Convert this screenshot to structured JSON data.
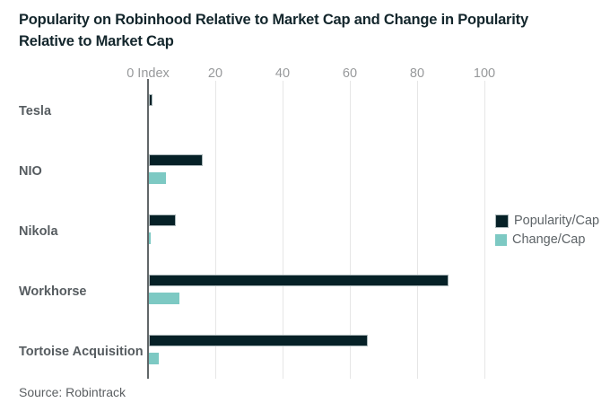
{
  "header": {
    "title": "Popularity on Robinhood Relative to Market Cap and Change in Popularity Relative to Market Cap",
    "title_line1": "Popularity on Robinhood Relative to Market Cap and Change in Popularity",
    "title_line2": "Relative to Market Cap"
  },
  "chart_data": {
    "type": "bar",
    "orientation": "horizontal",
    "title": "Popularity on Robinhood Relative to Market Cap and Change in Popularity Relative to Market Cap",
    "categories": [
      "Tesla",
      "NIO",
      "Nikola",
      "Workhorse",
      "Tortoise Acquisition"
    ],
    "series": [
      {
        "name": "Popularity/Cap",
        "color": "#062127",
        "values": [
          1,
          16,
          8,
          89,
          65
        ]
      },
      {
        "name": "Change/Cap",
        "color": "#7dc9c3",
        "values": [
          0,
          5,
          0.5,
          9,
          3
        ]
      }
    ],
    "x_ticks": [
      {
        "value": 0,
        "label": "0 Index"
      },
      {
        "value": 20,
        "label": "20"
      },
      {
        "value": 40,
        "label": "40"
      },
      {
        "value": 60,
        "label": "60"
      },
      {
        "value": 80,
        "label": "80"
      },
      {
        "value": 100,
        "label": "100"
      }
    ],
    "xlim": [
      0,
      105
    ],
    "xlabel": "Index",
    "ylabel": "",
    "grid": "vertical",
    "legend_position": "right"
  },
  "legend": {
    "items": [
      {
        "label": "Popularity/Cap",
        "color": "#062127"
      },
      {
        "label": "Change/Cap",
        "color": "#7dc9c3"
      }
    ]
  },
  "footer": {
    "source": "Source: Robintrack"
  },
  "colors": {
    "title_text": "#13262c",
    "dark_bar": "#062127",
    "dark_bar_border": "#a9b6b8",
    "teal_bar": "#7dc9c3",
    "gridline": "#e6e6e6",
    "axis_line": "#616668",
    "tick_text": "#97999b",
    "category_text": "#565c60",
    "legend_text": "#5e6468",
    "source_text": "#5b5f62"
  }
}
